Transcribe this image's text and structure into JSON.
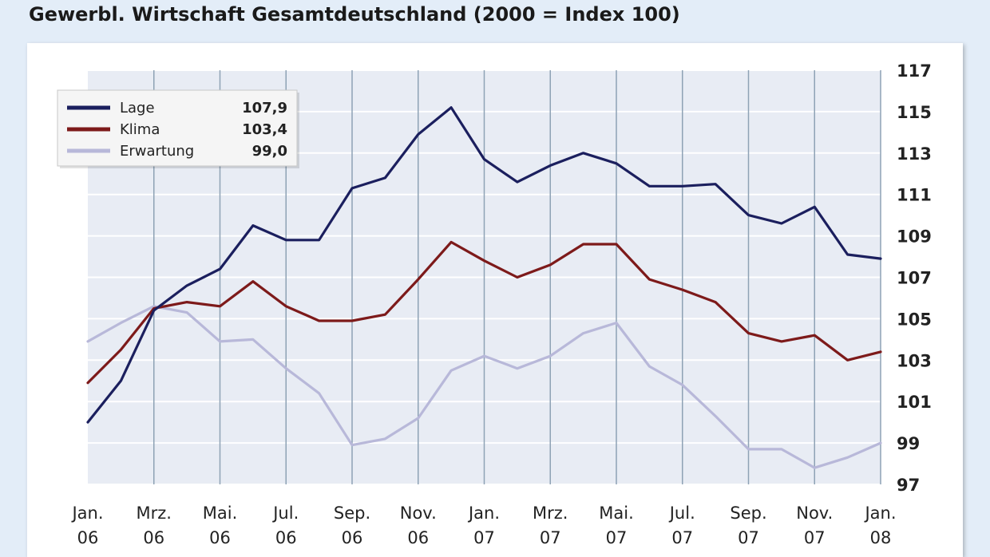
{
  "title": "Gewerbl. Wirtschaft Gesamtdeutschland (2000 = Index 100)",
  "chart_data": {
    "type": "line",
    "title": "Gewerbl. Wirtschaft Gesamtdeutschland (2000 = Index 100)",
    "xlabel": "",
    "ylabel": "",
    "ylim": [
      97,
      117
    ],
    "yticks": [
      97,
      99,
      101,
      103,
      105,
      107,
      109,
      111,
      113,
      115,
      117
    ],
    "y_axis_side": "right",
    "grid": true,
    "x": [
      "2006-01",
      "2006-02",
      "2006-03",
      "2006-04",
      "2006-05",
      "2006-06",
      "2006-07",
      "2006-08",
      "2006-09",
      "2006-10",
      "2006-11",
      "2006-12",
      "2007-01",
      "2007-02",
      "2007-03",
      "2007-04",
      "2007-05",
      "2007-06",
      "2007-07",
      "2007-08",
      "2007-09",
      "2007-10",
      "2007-11",
      "2007-12",
      "2008-01"
    ],
    "xtick_labels": [
      {
        "month": "Jan.",
        "year": "06",
        "x": "2006-01"
      },
      {
        "month": "Mrz.",
        "year": "06",
        "x": "2006-03"
      },
      {
        "month": "Mai.",
        "year": "06",
        "x": "2006-05"
      },
      {
        "month": "Jul.",
        "year": "06",
        "x": "2006-07"
      },
      {
        "month": "Sep.",
        "year": "06",
        "x": "2006-09"
      },
      {
        "month": "Nov.",
        "year": "06",
        "x": "2006-11"
      },
      {
        "month": "Jan.",
        "year": "07",
        "x": "2007-01"
      },
      {
        "month": "Mrz.",
        "year": "07",
        "x": "2007-03"
      },
      {
        "month": "Mai.",
        "year": "07",
        "x": "2007-05"
      },
      {
        "month": "Jul.",
        "year": "07",
        "x": "2007-07"
      },
      {
        "month": "Sep.",
        "year": "07",
        "x": "2007-09"
      },
      {
        "month": "Nov.",
        "year": "07",
        "x": "2007-11"
      },
      {
        "month": "Jan.",
        "year": "08",
        "x": "2008-01"
      }
    ],
    "legend_placement": "top-left",
    "series": [
      {
        "name": "Lage",
        "legend_value": "107,9",
        "color": "#1b1f5e",
        "values": [
          100.0,
          102.0,
          105.4,
          106.6,
          107.4,
          109.5,
          108.8,
          108.8,
          111.3,
          111.8,
          113.9,
          115.2,
          112.7,
          111.6,
          112.4,
          113.0,
          112.5,
          111.4,
          111.4,
          111.5,
          110.0,
          109.6,
          110.4,
          108.1,
          107.9
        ]
      },
      {
        "name": "Klima",
        "legend_value": "103,4",
        "color": "#7d1a1a",
        "values": [
          101.9,
          103.5,
          105.5,
          105.8,
          105.6,
          106.8,
          105.6,
          104.9,
          104.9,
          105.2,
          106.9,
          108.7,
          107.8,
          107.0,
          107.6,
          108.6,
          108.6,
          106.9,
          106.4,
          105.8,
          104.3,
          103.9,
          104.2,
          103.0,
          103.4
        ]
      },
      {
        "name": "Erwartung",
        "legend_value": "99,0",
        "color": "#b8b8d9",
        "values": [
          103.9,
          104.8,
          105.6,
          105.3,
          103.9,
          104.0,
          102.6,
          101.4,
          98.9,
          99.2,
          100.2,
          102.5,
          103.2,
          102.6,
          103.2,
          104.3,
          104.8,
          102.7,
          101.8,
          100.3,
          98.7,
          98.7,
          97.8,
          98.3,
          99.0
        ]
      }
    ]
  }
}
